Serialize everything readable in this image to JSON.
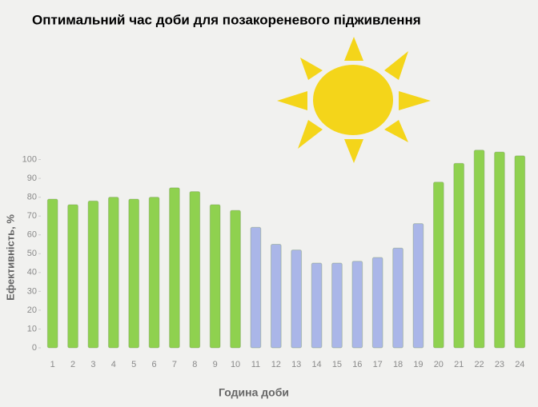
{
  "chart_data": {
    "type": "bar",
    "title": "Оптимальний час доби для позакореневого підживлення",
    "y_label": "Ефективність, %",
    "x_label": "Година доби",
    "categories": [
      "1",
      "2",
      "3",
      "4",
      "5",
      "6",
      "7",
      "8",
      "9",
      "10",
      "11",
      "12",
      "13",
      "14",
      "15",
      "16",
      "17",
      "18",
      "19",
      "20",
      "21",
      "22",
      "23",
      "24"
    ],
    "values": [
      79,
      76,
      78,
      80,
      79,
      80,
      85,
      83,
      76,
      73,
      64,
      55,
      52,
      45,
      45,
      46,
      48,
      53,
      66,
      88,
      98,
      105,
      104,
      102
    ],
    "colors": [
      "#8fd14f",
      "#8fd14f",
      "#8fd14f",
      "#8fd14f",
      "#8fd14f",
      "#8fd14f",
      "#8fd14f",
      "#8fd14f",
      "#8fd14f",
      "#8fd14f",
      "#aab6e8",
      "#aab6e8",
      "#aab6e8",
      "#aab6e8",
      "#aab6e8",
      "#aab6e8",
      "#aab6e8",
      "#aab6e8",
      "#aab6e8",
      "#8fd14f",
      "#8fd14f",
      "#8fd14f",
      "#8fd14f",
      "#8fd14f"
    ],
    "ylim": [
      0,
      110
    ],
    "yticks": [
      0,
      10,
      20,
      30,
      40,
      50,
      60,
      70,
      80,
      90,
      100
    ],
    "grid": false
  }
}
